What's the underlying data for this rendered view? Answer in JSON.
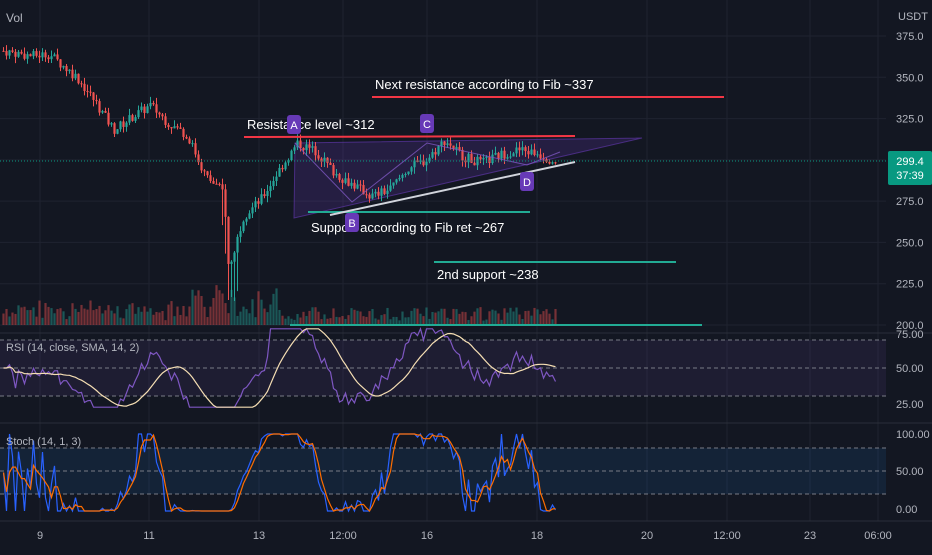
{
  "colors": {
    "background": "#131722",
    "grid": "#1f2330",
    "axis_text": "#b2b5be",
    "candle_up": "#26a69a",
    "candle_down": "#ef5350",
    "resistance_line": "#f23645",
    "support_line": "#22ab94",
    "triangle_fill": "#673ab7",
    "label_bg": "#673ab7",
    "trendline": "#d1d4dc",
    "price_badge": "#089981",
    "rsi_line": "#7e57c2",
    "rsi_ma": "#f5deb3",
    "stoch_k": "#2962ff",
    "stoch_d": "#ff6d00",
    "text_white": "#ffffff"
  },
  "header": {
    "vol_label": "Vol",
    "currency": "USDT"
  },
  "price_badge": {
    "price": "299.4",
    "countdown": "37:39"
  },
  "annotations": {
    "next_resistance": "Next resistance according to Fib ~337",
    "resistance": "Resistance level ~312",
    "support": "Support according to Fib ret ~267",
    "second_support": "2nd support ~238"
  },
  "point_labels": [
    "A",
    "B",
    "C",
    "D"
  ],
  "rsi": {
    "label": "RSI (14, close, SMA, 14, 2)",
    "ticks": [
      "75.00",
      "50.00",
      "25.00"
    ]
  },
  "stoch": {
    "label": "Stoch (14, 1, 3)",
    "ticks": [
      "100.00",
      "50.00",
      "0.00"
    ]
  },
  "chart_data": {
    "type": "candlestick",
    "price_axis": {
      "ticks": [
        375,
        350,
        325,
        300,
        275,
        250,
        225,
        200
      ],
      "ylim": [
        200,
        375
      ],
      "unit": "USDT"
    },
    "time_axis": {
      "ticks": [
        "9",
        "11",
        "13",
        "12:00",
        "16",
        "18",
        "20",
        "12:00",
        "23",
        "06:00"
      ]
    },
    "price_path": [
      {
        "t": 0,
        "p": 366
      },
      {
        "t": 0.03,
        "p": 363
      },
      {
        "t": 0.05,
        "p": 364
      },
      {
        "t": 0.08,
        "p": 350
      },
      {
        "t": 0.1,
        "p": 335
      },
      {
        "t": 0.12,
        "p": 318
      },
      {
        "t": 0.14,
        "p": 326
      },
      {
        "t": 0.16,
        "p": 333
      },
      {
        "t": 0.18,
        "p": 322
      },
      {
        "t": 0.2,
        "p": 315
      },
      {
        "t": 0.22,
        "p": 290
      },
      {
        "t": 0.24,
        "p": 280
      },
      {
        "t": 0.245,
        "p": 232
      },
      {
        "t": 0.26,
        "p": 265
      },
      {
        "t": 0.28,
        "p": 276
      },
      {
        "t": 0.3,
        "p": 294
      },
      {
        "t": 0.32,
        "p": 310
      },
      {
        "t": 0.34,
        "p": 305
      },
      {
        "t": 0.36,
        "p": 292
      },
      {
        "t": 0.38,
        "p": 285
      },
      {
        "t": 0.4,
        "p": 278
      },
      {
        "t": 0.42,
        "p": 282
      },
      {
        "t": 0.44,
        "p": 295
      },
      {
        "t": 0.46,
        "p": 300
      },
      {
        "t": 0.48,
        "p": 312
      },
      {
        "t": 0.5,
        "p": 302
      },
      {
        "t": 0.52,
        "p": 298
      },
      {
        "t": 0.54,
        "p": 303
      },
      {
        "t": 0.56,
        "p": 306
      },
      {
        "t": 0.58,
        "p": 304
      },
      {
        "t": 0.6,
        "p": 299
      }
    ],
    "levels": [
      {
        "name": "Next resistance",
        "value": 337
      },
      {
        "name": "Resistance",
        "value": 312
      },
      {
        "name": "Support",
        "value": 267
      },
      {
        "name": "2nd support",
        "value": 238
      }
    ],
    "current_price": 299.4
  }
}
